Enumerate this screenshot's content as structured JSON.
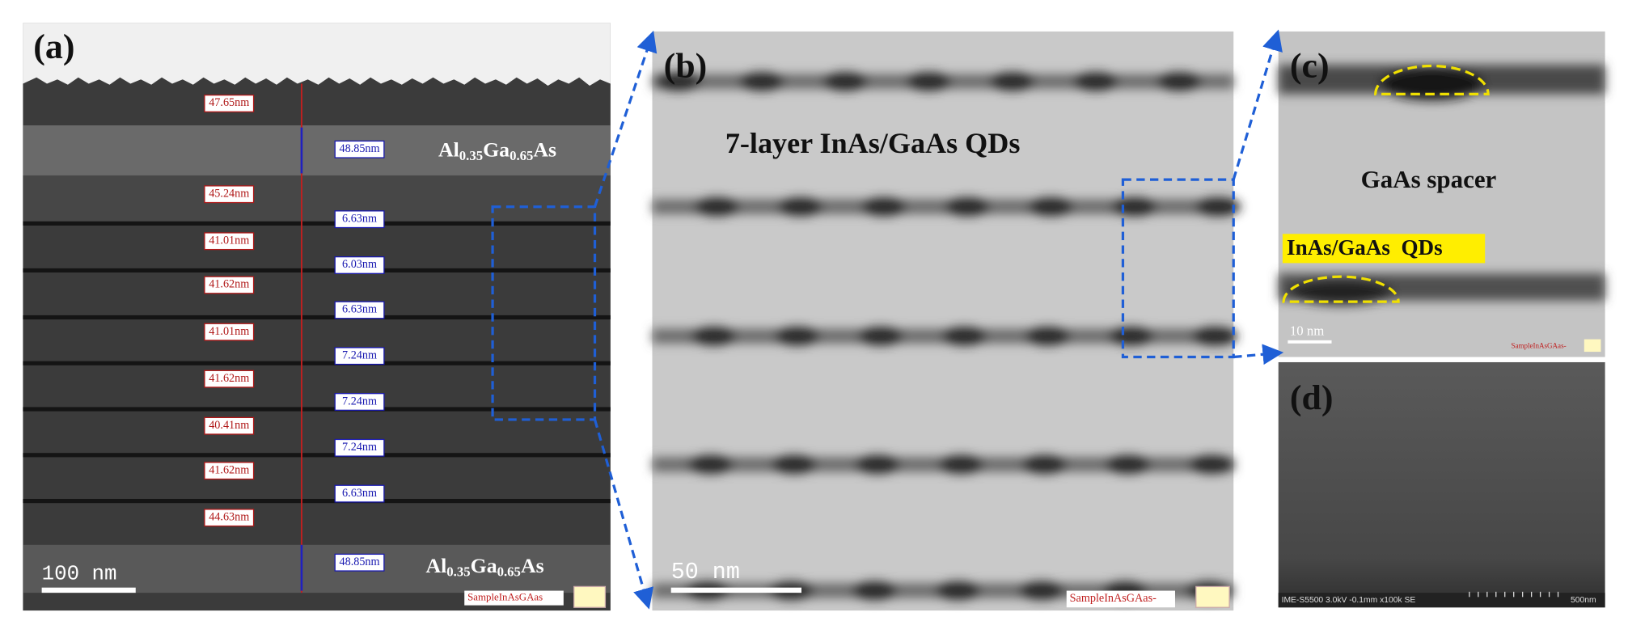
{
  "panels": {
    "a": {
      "label": "(a)",
      "red_measurements": [
        "47.65nm",
        "45.24nm",
        "41.01nm",
        "41.62nm",
        "41.01nm",
        "41.62nm",
        "40.41nm",
        "41.62nm",
        "44.63nm"
      ],
      "blue_measurements": [
        "48.85nm",
        "6.63nm",
        "6.03nm",
        "6.63nm",
        "7.24nm",
        "7.24nm",
        "7.24nm",
        "6.63nm",
        "48.85nm"
      ],
      "material_top": [
        "Al",
        "0.35",
        "Ga",
        "0.65",
        "As"
      ],
      "material_bottom": [
        "Al",
        "0.35",
        "Ga",
        "0.65",
        "As"
      ],
      "scale_bar": "100 nm",
      "watermark": "SampleInAsGAas"
    },
    "b": {
      "label": "(b)",
      "title": "7-layer InAs/GaAs QDs",
      "scale_bar": "50 nm",
      "watermark": "SampleInAsGAas-"
    },
    "c": {
      "label": "(c)",
      "spacer": "GaAs spacer",
      "qds": "InAs/GaAs  QDs",
      "scale_bar": "10 nm",
      "watermark": "SampleInAsGAas-"
    },
    "d": {
      "label": "(d)",
      "info": "IME-S5500 3.0kV -0.1mm x100k SE",
      "scale_bar": "500nm"
    }
  }
}
